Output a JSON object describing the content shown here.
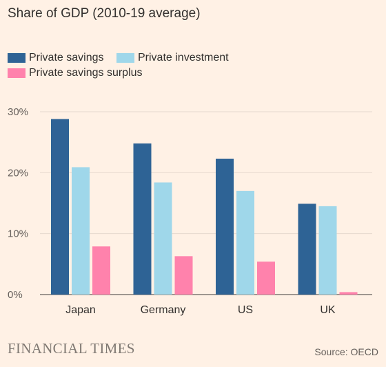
{
  "chart_data": {
    "type": "bar",
    "title": "Share of GDP (2010-19 average)",
    "categories": [
      "Japan",
      "Germany",
      "US",
      "UK"
    ],
    "series": [
      {
        "name": "Private savings",
        "color": "#2e6395",
        "values": [
          28.8,
          24.8,
          22.3,
          14.9
        ]
      },
      {
        "name": "Private investment",
        "color": "#9fd7ea",
        "values": [
          20.9,
          18.4,
          17.0,
          14.5
        ]
      },
      {
        "name": "Private savings surplus",
        "color": "#ff82ac",
        "values": [
          7.9,
          6.3,
          5.4,
          0.4
        ]
      }
    ],
    "ylim": [
      0,
      30
    ],
    "yticks": [
      0,
      10,
      20,
      30
    ],
    "ytick_labels": [
      "0%",
      "10%",
      "20%",
      "30%"
    ],
    "grid": true,
    "legend_position": "top-left"
  },
  "footer": {
    "brand": "FINANCIAL TIMES",
    "source": "Source: OECD"
  }
}
